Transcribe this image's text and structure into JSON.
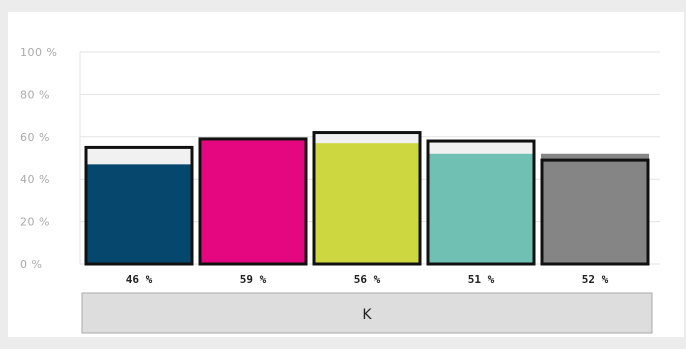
{
  "chart_data": {
    "type": "bar",
    "yaxis_ticks": [
      "100 %",
      "80 %",
      "60 %",
      "40 %",
      "20 %",
      "0 %"
    ],
    "ylim": [
      0,
      100
    ],
    "grid": true,
    "category": "K",
    "bars": [
      {
        "label": "46 %",
        "value": 46,
        "fill_value": 47,
        "outline_value": 55,
        "color": "#06476e"
      },
      {
        "label": "59 %",
        "value": 59,
        "fill_value": 59,
        "outline_value": 59,
        "color": "#e4077f"
      },
      {
        "label": "56 %",
        "value": 56,
        "fill_value": 57,
        "outline_value": 62,
        "color": "#cdd841"
      },
      {
        "label": "51 %",
        "value": 51,
        "fill_value": 52,
        "outline_value": 58,
        "color": "#70c1b3"
      },
      {
        "label": "52 %",
        "value": 52,
        "fill_value": 52,
        "outline_value": 49,
        "color": "#858585"
      }
    ]
  }
}
